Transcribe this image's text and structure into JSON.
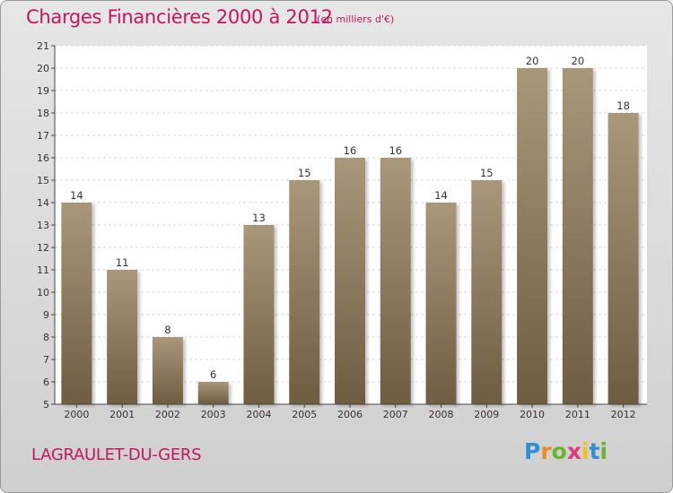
{
  "header": {
    "title": "Charges Financières 2000 à 2012",
    "subtitle": "(en milliers d'€)"
  },
  "footer": {
    "location": "LAGRAULET-DU-GERS",
    "logo_text": "Proxiti"
  },
  "colors": {
    "accent": "#c4155e",
    "bar_top": "#a9977a",
    "bar_bottom": "#6e5d41"
  },
  "chart_data": {
    "type": "bar",
    "title": "Charges Financières 2000 à 2012",
    "subtitle": "(en milliers d'€)",
    "categories": [
      "2000",
      "2001",
      "2002",
      "2003",
      "2004",
      "2005",
      "2006",
      "2007",
      "2008",
      "2009",
      "2010",
      "2011",
      "2012"
    ],
    "values": [
      14,
      11,
      8,
      6,
      13,
      15,
      16,
      16,
      14,
      15,
      20,
      20,
      18
    ],
    "ylim": [
      5,
      21
    ],
    "yticks": [
      5,
      6,
      7,
      8,
      9,
      10,
      11,
      12,
      13,
      14,
      15,
      16,
      17,
      18,
      19,
      20,
      21
    ],
    "grid": true,
    "xlabel": "",
    "ylabel": ""
  }
}
